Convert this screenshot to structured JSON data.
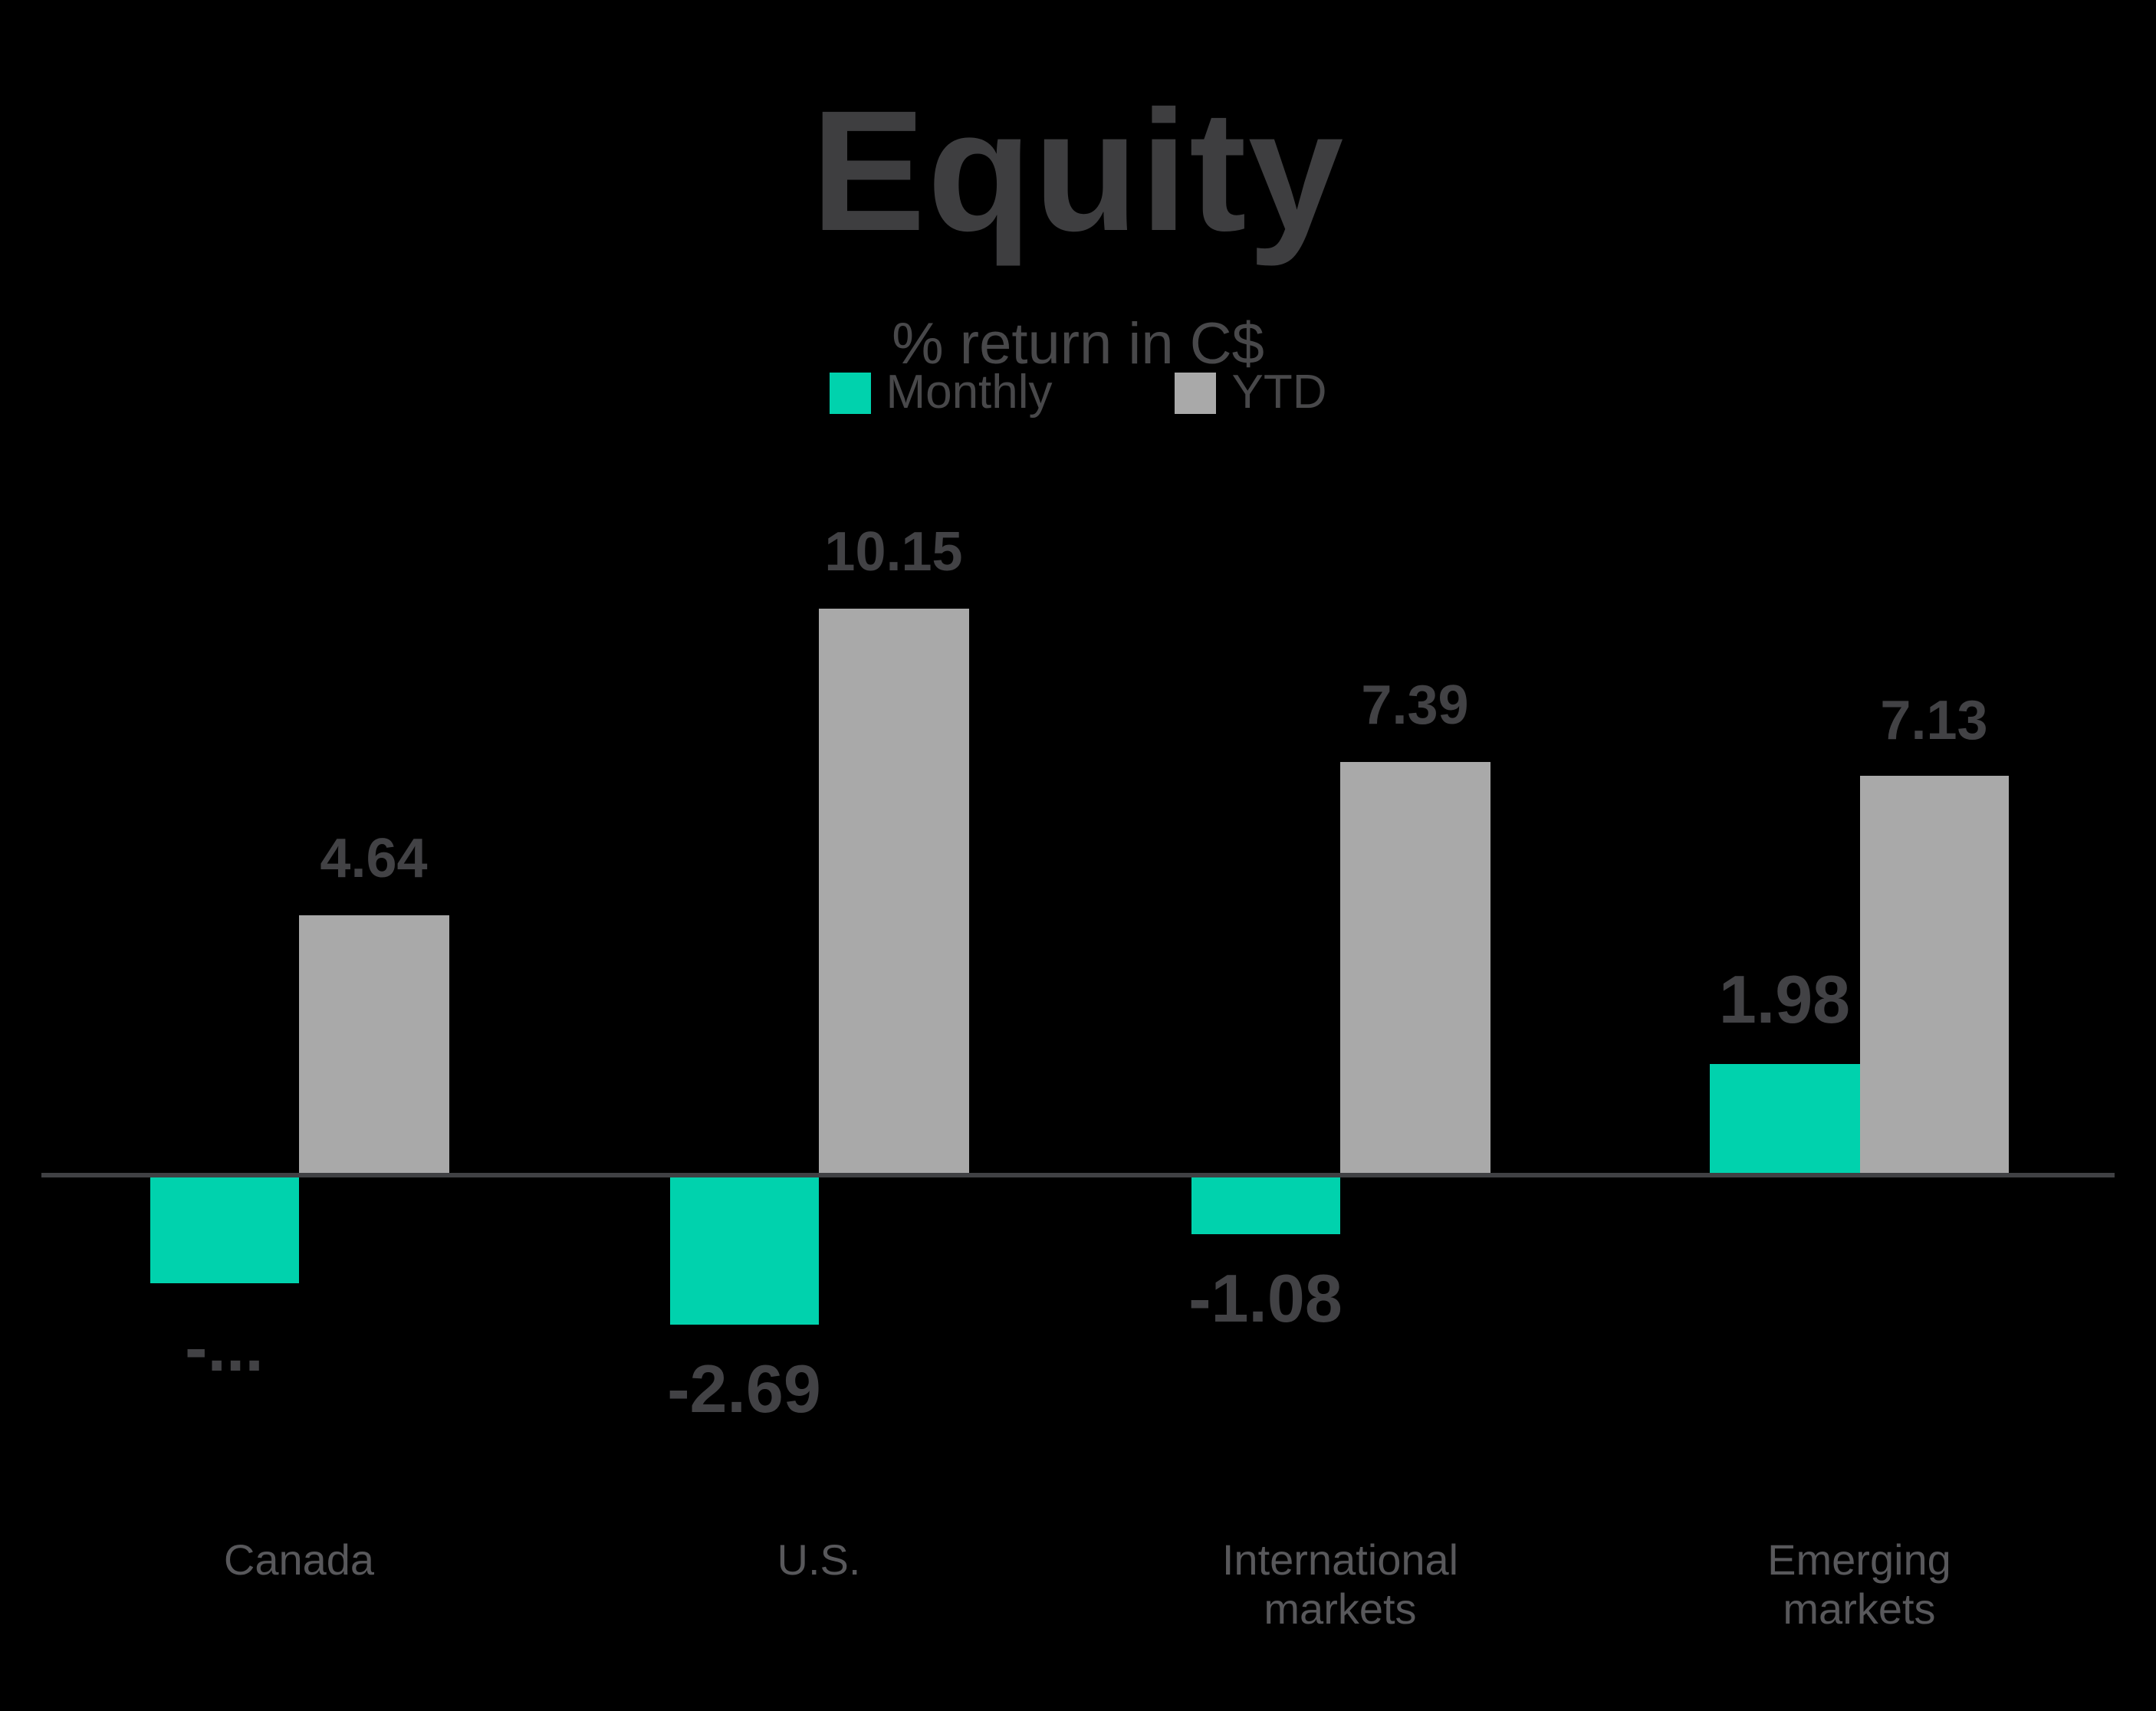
{
  "header": {
    "title": "Equity",
    "subtitle": "% return in C$"
  },
  "legend": {
    "items": [
      {
        "label": "Monthly",
        "color": "#00d2ad"
      },
      {
        "label": "YTD",
        "color": "#a9a9a9"
      }
    ]
  },
  "colors": {
    "background": "#000000",
    "axis_line": "#404144",
    "title_text": "#3e3e40",
    "subtitle_text": "#48484a",
    "value_label_text": "#424245",
    "category_label_text": "#58585b",
    "monthly_bar": "#00d2ad",
    "ytd_bar": "#a9a9a9"
  },
  "chart_data": {
    "type": "bar",
    "title": "Equity",
    "subtitle": "% return in C$",
    "categories": [
      "Canada",
      "U.S.",
      "International markets",
      "Emerging markets"
    ],
    "series": [
      {
        "name": "Monthly",
        "color": "#00d2ad",
        "values": [
          -1.94,
          -2.69,
          -1.08,
          1.98
        ],
        "value_labels": [
          "-...",
          "-2.69",
          "-1.08",
          "1.98"
        ]
      },
      {
        "name": "YTD",
        "color": "#a9a9a9",
        "values": [
          4.64,
          10.15,
          7.39,
          7.13
        ],
        "value_labels": [
          "4.64",
          "10.15",
          "7.39",
          "7.13"
        ]
      }
    ],
    "value_axis": {
      "visible": false,
      "baseline": 0,
      "approx_range": [
        -3,
        11
      ]
    },
    "grid": false,
    "legend_position": "top-center"
  }
}
